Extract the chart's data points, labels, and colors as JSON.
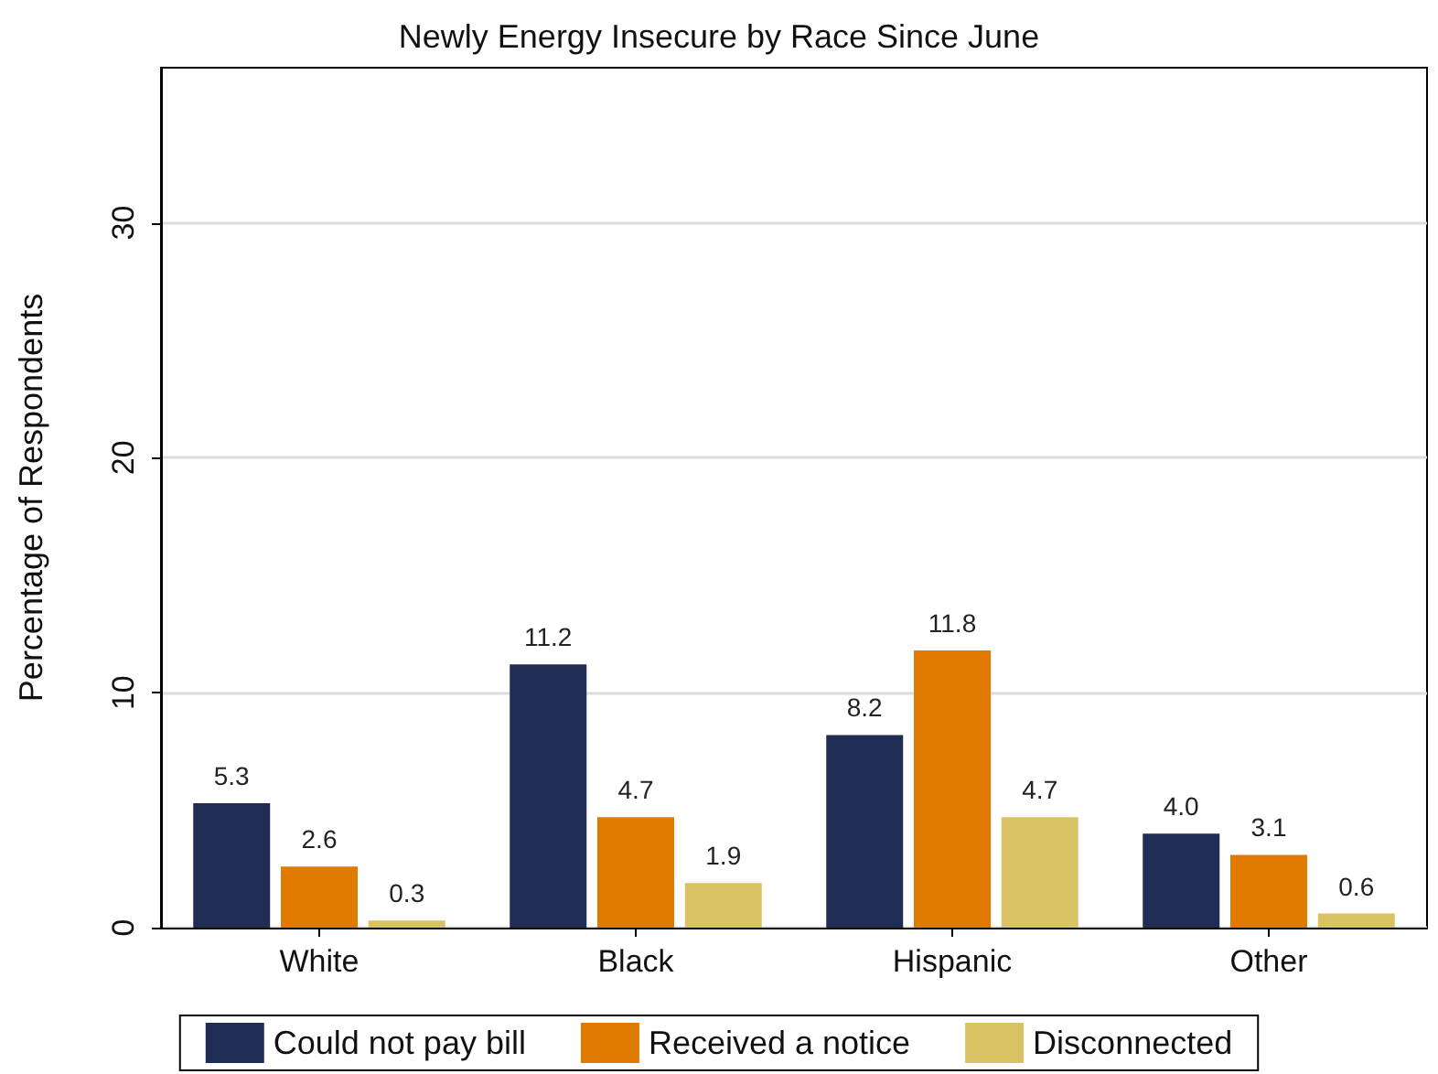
{
  "chart_data": {
    "type": "bar",
    "title": "Newly Energy Insecure by Race Since June",
    "ylabel": "Percentage of Respondents",
    "categories": [
      "White",
      "Black",
      "Hispanic",
      "Other"
    ],
    "series": [
      {
        "name": "Could not pay bill",
        "color": "#1f2d54",
        "values": [
          5.3,
          11.2,
          8.2,
          4.0
        ],
        "value_labels": [
          "5.3",
          "11.2",
          "8.2",
          "4.0"
        ]
      },
      {
        "name": "Received a notice",
        "color": "#e07b00",
        "values": [
          2.6,
          4.7,
          11.8,
          3.1
        ],
        "value_labels": [
          "2.6",
          "4.7",
          "11.8",
          "3.1"
        ]
      },
      {
        "name": "Disconnected",
        "color": "#d9c263",
        "values": [
          0.3,
          1.9,
          4.7,
          0.6
        ],
        "value_labels": [
          "0.3",
          "1.9",
          "4.7",
          "0.6"
        ]
      }
    ],
    "ylim": [
      0,
      36.6
    ],
    "yticks": [
      0,
      10,
      20,
      30
    ],
    "grid": "y",
    "legend": "bottom"
  }
}
